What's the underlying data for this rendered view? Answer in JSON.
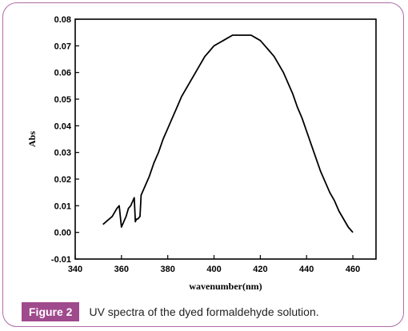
{
  "chart_data": {
    "type": "line",
    "title": "",
    "xlabel": "wavenumber(nm)",
    "ylabel": "Abs",
    "xlim": [
      340,
      470
    ],
    "ylim": [
      -0.01,
      0.08
    ],
    "x_ticks": [
      "340",
      "360",
      "380",
      "400",
      "420",
      "440",
      "460"
    ],
    "y_ticks": [
      "-0.01",
      "0.00",
      "0.01",
      "0.02",
      "0.03",
      "0.04",
      "0.05",
      "0.06",
      "0.07",
      "0.08"
    ],
    "grid": false,
    "legend": false,
    "series": [
      {
        "color": "#000000",
        "x": [
          352,
          356,
          358,
          359,
          359.5,
          360,
          361,
          362,
          363,
          364,
          365,
          365.5,
          366,
          366.5,
          367,
          368,
          368.5,
          370,
          372,
          374,
          376,
          378,
          380,
          382,
          384,
          386,
          388,
          390,
          392,
          394,
          396,
          398,
          400,
          402,
          404,
          406,
          408,
          410,
          412,
          414,
          416,
          418,
          420,
          422,
          424,
          426,
          428,
          430,
          432,
          434,
          436,
          438,
          440,
          442,
          444,
          446,
          448,
          450,
          452,
          454,
          456,
          458,
          460
        ],
        "values": [
          0.003,
          0.006,
          0.009,
          0.01,
          0.006,
          0.002,
          0.004,
          0.006,
          0.009,
          0.01,
          0.012,
          0.013,
          0.004,
          0.005,
          0.005,
          0.006,
          0.014,
          0.017,
          0.021,
          0.026,
          0.03,
          0.035,
          0.039,
          0.043,
          0.047,
          0.051,
          0.054,
          0.057,
          0.06,
          0.063,
          0.066,
          0.068,
          0.07,
          0.071,
          0.072,
          0.073,
          0.074,
          0.074,
          0.074,
          0.074,
          0.074,
          0.073,
          0.072,
          0.07,
          0.068,
          0.066,
          0.063,
          0.06,
          0.056,
          0.052,
          0.047,
          0.043,
          0.038,
          0.033,
          0.028,
          0.023,
          0.019,
          0.015,
          0.012,
          0.008,
          0.005,
          0.002,
          0.0
        ]
      }
    ]
  },
  "caption": {
    "label": "Figure 2",
    "text": "UV spectra of the dyed formaldehyde solution."
  }
}
